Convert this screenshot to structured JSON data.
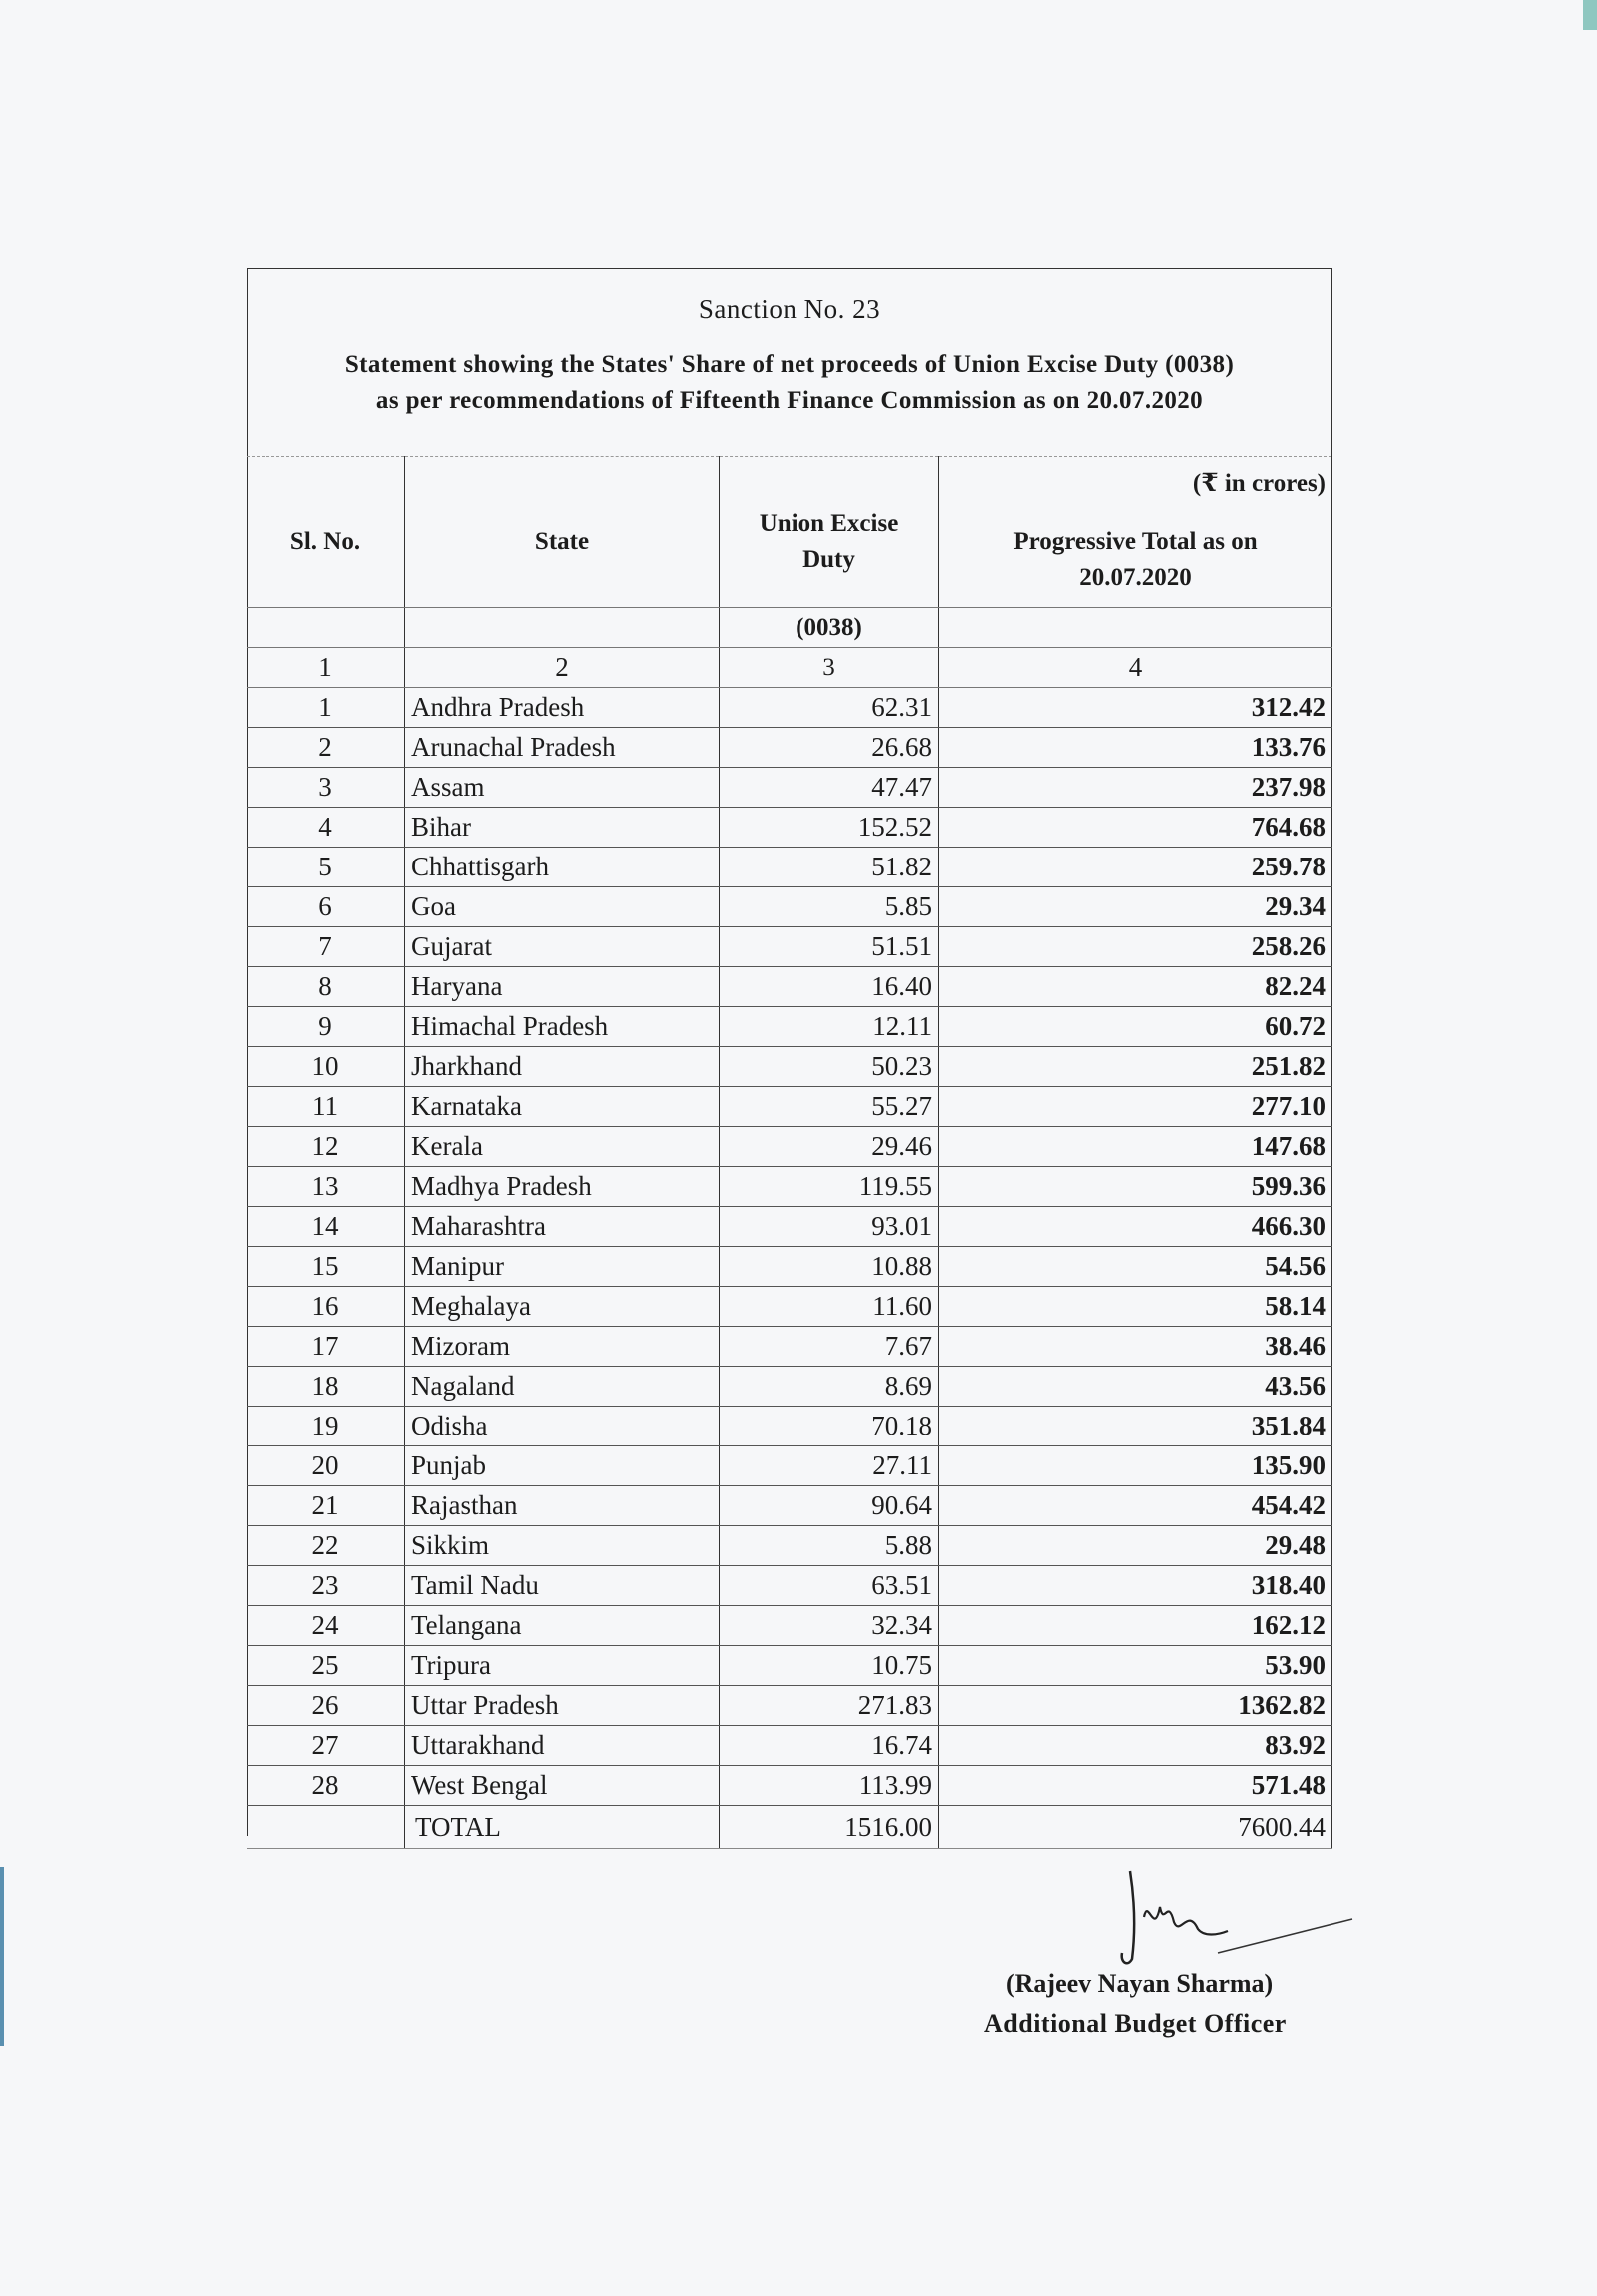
{
  "header": {
    "title": "Sanction No. 23",
    "statement_line1": "Statement showing the States' Share of net proceeds of Union Excise Duty (0038)",
    "statement_line2": "as per recommendations of  Fifteenth Finance Commission as on 20.07.2020",
    "unit": "(₹ in crores)"
  },
  "table": {
    "columns": [
      "Sl. No.",
      "State",
      "Union Excise Duty",
      "Progressive Total as on 20.07.2020"
    ],
    "col3_code": "(0038)",
    "col_numbers": [
      "1",
      "2",
      "3",
      "4"
    ],
    "rows": [
      [
        "1",
        "Andhra Pradesh",
        "62.31",
        "312.42"
      ],
      [
        "2",
        "Arunachal Pradesh",
        "26.68",
        "133.76"
      ],
      [
        "3",
        "Assam",
        "47.47",
        "237.98"
      ],
      [
        "4",
        "Bihar",
        "152.52",
        "764.68"
      ],
      [
        "5",
        "Chhattisgarh",
        "51.82",
        "259.78"
      ],
      [
        "6",
        "Goa",
        "5.85",
        "29.34"
      ],
      [
        "7",
        "Gujarat",
        "51.51",
        "258.26"
      ],
      [
        "8",
        "Haryana",
        "16.40",
        "82.24"
      ],
      [
        "9",
        "Himachal Pradesh",
        "12.11",
        "60.72"
      ],
      [
        "10",
        "Jharkhand",
        "50.23",
        "251.82"
      ],
      [
        "11",
        "Karnataka",
        "55.27",
        "277.10"
      ],
      [
        "12",
        "Kerala",
        "29.46",
        "147.68"
      ],
      [
        "13",
        "Madhya Pradesh",
        "119.55",
        "599.36"
      ],
      [
        "14",
        "Maharashtra",
        "93.01",
        "466.30"
      ],
      [
        "15",
        "Manipur",
        "10.88",
        "54.56"
      ],
      [
        "16",
        "Meghalaya",
        "11.60",
        "58.14"
      ],
      [
        "17",
        "Mizoram",
        "7.67",
        "38.46"
      ],
      [
        "18",
        "Nagaland",
        "8.69",
        "43.56"
      ],
      [
        "19",
        "Odisha",
        "70.18",
        "351.84"
      ],
      [
        "20",
        "Punjab",
        "27.11",
        "135.90"
      ],
      [
        "21",
        "Rajasthan",
        "90.64",
        "454.42"
      ],
      [
        "22",
        "Sikkim",
        "5.88",
        "29.48"
      ],
      [
        "23",
        "Tamil Nadu",
        "63.51",
        "318.40"
      ],
      [
        "24",
        "Telangana",
        "32.34",
        "162.12"
      ],
      [
        "25",
        "Tripura",
        "10.75",
        "53.90"
      ],
      [
        "26",
        "Uttar Pradesh",
        "271.83",
        "1362.82"
      ],
      [
        "27",
        "Uttarakhand",
        "16.74",
        "83.92"
      ],
      [
        "28",
        "West Bengal",
        "113.99",
        "571.48"
      ]
    ],
    "total": {
      "label": "TOTAL",
      "duty": "1516.00",
      "progressive": "7600.44"
    }
  },
  "signature": {
    "name": "(Rajeev Nayan Sharma)",
    "designation": "Additional Budget Officer"
  }
}
